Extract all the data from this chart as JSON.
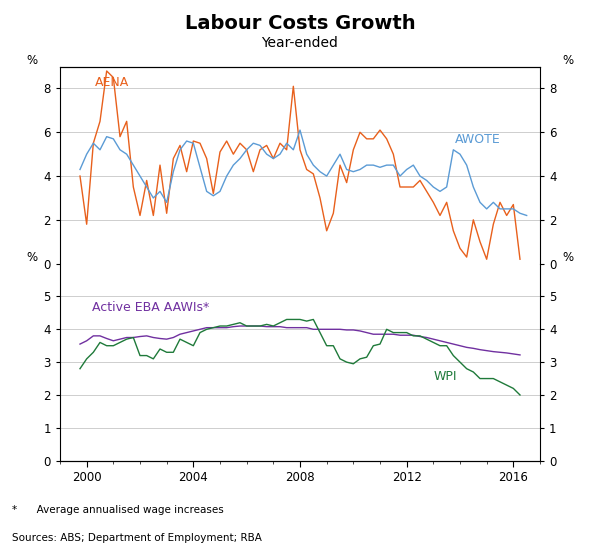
{
  "title": "Labour Costs Growth",
  "subtitle": "Year-ended",
  "footnote": "*      Average annualised wage increases",
  "source": "Sources: ABS; Department of Employment; RBA",
  "title_fontsize": 14,
  "subtitle_fontsize": 10,
  "label_fontsize": 9,
  "tick_fontsize": 8.5,
  "top_panel": {
    "ylim": [
      0,
      9
    ],
    "yticks": [
      0,
      2,
      4,
      6,
      8
    ],
    "ylabel": "%",
    "aena_color": "#E8601C",
    "awote_color": "#5B9BD5",
    "aena_label": "AENA",
    "awote_label": "AWOTE",
    "aena_data": {
      "x": [
        1999.75,
        2000.0,
        2000.25,
        2000.5,
        2000.75,
        2001.0,
        2001.25,
        2001.5,
        2001.75,
        2002.0,
        2002.25,
        2002.5,
        2002.75,
        2003.0,
        2003.25,
        2003.5,
        2003.75,
        2004.0,
        2004.25,
        2004.5,
        2004.75,
        2005.0,
        2005.25,
        2005.5,
        2005.75,
        2006.0,
        2006.25,
        2006.5,
        2006.75,
        2007.0,
        2007.25,
        2007.5,
        2007.75,
        2008.0,
        2008.25,
        2008.5,
        2008.75,
        2009.0,
        2009.25,
        2009.5,
        2009.75,
        2010.0,
        2010.25,
        2010.5,
        2010.75,
        2011.0,
        2011.25,
        2011.5,
        2011.75,
        2012.0,
        2012.25,
        2012.5,
        2012.75,
        2013.0,
        2013.25,
        2013.5,
        2013.75,
        2014.0,
        2014.25,
        2014.5,
        2014.75,
        2015.0,
        2015.25,
        2015.5,
        2015.75,
        2016.0,
        2016.25,
        2016.5
      ],
      "y": [
        4.0,
        1.8,
        5.5,
        6.5,
        8.8,
        8.5,
        5.8,
        6.5,
        3.5,
        2.2,
        3.8,
        2.2,
        4.5,
        2.3,
        4.8,
        5.4,
        4.2,
        5.6,
        5.5,
        4.8,
        3.2,
        5.1,
        5.6,
        5.0,
        5.5,
        5.2,
        4.2,
        5.2,
        5.4,
        4.8,
        5.5,
        5.2,
        8.1,
        5.2,
        4.3,
        4.1,
        3.0,
        1.5,
        2.3,
        4.5,
        3.7,
        5.2,
        6.0,
        5.7,
        5.7,
        6.1,
        5.7,
        5.0,
        3.5,
        3.5,
        3.5,
        3.8,
        3.3,
        2.8,
        2.2,
        2.8,
        1.5,
        0.7,
        0.3,
        2.0,
        1.0,
        0.2,
        1.8,
        2.8,
        2.2,
        2.7,
        0.2,
        null
      ]
    },
    "awote_data": {
      "x": [
        1999.75,
        2000.0,
        2000.25,
        2000.5,
        2000.75,
        2001.0,
        2001.25,
        2001.5,
        2001.75,
        2002.0,
        2002.25,
        2002.5,
        2002.75,
        2003.0,
        2003.25,
        2003.5,
        2003.75,
        2004.0,
        2004.25,
        2004.5,
        2004.75,
        2005.0,
        2005.25,
        2005.5,
        2005.75,
        2006.0,
        2006.25,
        2006.5,
        2006.75,
        2007.0,
        2007.25,
        2007.5,
        2007.75,
        2008.0,
        2008.25,
        2008.5,
        2008.75,
        2009.0,
        2009.25,
        2009.5,
        2009.75,
        2010.0,
        2010.25,
        2010.5,
        2010.75,
        2011.0,
        2011.25,
        2011.5,
        2011.75,
        2012.0,
        2012.25,
        2012.5,
        2012.75,
        2013.0,
        2013.25,
        2013.5,
        2013.75,
        2014.0,
        2014.25,
        2014.5,
        2014.75,
        2015.0,
        2015.25,
        2015.5,
        2015.75,
        2016.0,
        2016.25,
        2016.5
      ],
      "y": [
        4.3,
        5.0,
        5.5,
        5.2,
        5.8,
        5.7,
        5.2,
        5.0,
        4.5,
        4.0,
        3.5,
        3.0,
        3.3,
        2.8,
        4.2,
        5.2,
        5.6,
        5.5,
        4.4,
        3.3,
        3.1,
        3.3,
        4.0,
        4.5,
        4.8,
        5.2,
        5.5,
        5.4,
        5.0,
        4.8,
        5.0,
        5.5,
        5.2,
        6.1,
        5.0,
        4.5,
        4.2,
        4.0,
        4.5,
        5.0,
        4.3,
        4.2,
        4.3,
        4.5,
        4.5,
        4.4,
        4.5,
        4.5,
        4.0,
        4.3,
        4.5,
        4.0,
        3.8,
        3.5,
        3.3,
        3.5,
        5.2,
        5.0,
        4.5,
        3.5,
        2.8,
        2.5,
        2.8,
        2.5,
        2.5,
        2.5,
        2.3,
        2.2
      ]
    }
  },
  "bottom_panel": {
    "ylim": [
      0,
      6
    ],
    "yticks": [
      0,
      1,
      2,
      3,
      4,
      5
    ],
    "ylabel": "%",
    "eba_color": "#7030A0",
    "wpi_color": "#1F7A3A",
    "eba_label": "Active EBA AAWIs*",
    "wpi_label": "WPI",
    "eba_data": {
      "x": [
        1999.75,
        2000.0,
        2000.25,
        2000.5,
        2000.75,
        2001.0,
        2001.25,
        2001.5,
        2001.75,
        2002.0,
        2002.25,
        2002.5,
        2002.75,
        2003.0,
        2003.25,
        2003.5,
        2003.75,
        2004.0,
        2004.25,
        2004.5,
        2004.75,
        2005.0,
        2005.25,
        2005.5,
        2005.75,
        2006.0,
        2006.25,
        2006.5,
        2006.75,
        2007.0,
        2007.25,
        2007.5,
        2007.75,
        2008.0,
        2008.25,
        2008.5,
        2008.75,
        2009.0,
        2009.25,
        2009.5,
        2009.75,
        2010.0,
        2010.25,
        2010.5,
        2010.75,
        2011.0,
        2011.25,
        2011.5,
        2011.75,
        2012.0,
        2012.25,
        2012.5,
        2012.75,
        2013.0,
        2013.25,
        2013.5,
        2013.75,
        2014.0,
        2014.25,
        2014.5,
        2014.75,
        2015.0,
        2015.25,
        2015.5,
        2015.75,
        2016.0,
        2016.25,
        2016.5
      ],
      "y": [
        3.55,
        3.65,
        3.8,
        3.8,
        3.72,
        3.65,
        3.7,
        3.75,
        3.75,
        3.78,
        3.8,
        3.75,
        3.72,
        3.7,
        3.75,
        3.85,
        3.9,
        3.95,
        4.0,
        4.05,
        4.05,
        4.05,
        4.05,
        4.08,
        4.1,
        4.1,
        4.1,
        4.1,
        4.08,
        4.08,
        4.08,
        4.05,
        4.05,
        4.05,
        4.05,
        4.0,
        4.0,
        4.0,
        4.0,
        4.0,
        3.98,
        3.98,
        3.95,
        3.9,
        3.85,
        3.85,
        3.85,
        3.85,
        3.82,
        3.82,
        3.82,
        3.78,
        3.75,
        3.7,
        3.65,
        3.6,
        3.55,
        3.5,
        3.45,
        3.42,
        3.38,
        3.35,
        3.32,
        3.3,
        3.28,
        3.25,
        3.22,
        null
      ]
    },
    "wpi_data": {
      "x": [
        1999.75,
        2000.0,
        2000.25,
        2000.5,
        2000.75,
        2001.0,
        2001.25,
        2001.5,
        2001.75,
        2002.0,
        2002.25,
        2002.5,
        2002.75,
        2003.0,
        2003.25,
        2003.5,
        2003.75,
        2004.0,
        2004.25,
        2004.5,
        2004.75,
        2005.0,
        2005.25,
        2005.5,
        2005.75,
        2006.0,
        2006.25,
        2006.5,
        2006.75,
        2007.0,
        2007.25,
        2007.5,
        2007.75,
        2008.0,
        2008.25,
        2008.5,
        2008.75,
        2009.0,
        2009.25,
        2009.5,
        2009.75,
        2010.0,
        2010.25,
        2010.5,
        2010.75,
        2011.0,
        2011.25,
        2011.5,
        2011.75,
        2012.0,
        2012.25,
        2012.5,
        2012.75,
        2013.0,
        2013.25,
        2013.5,
        2013.75,
        2014.0,
        2014.25,
        2014.5,
        2014.75,
        2015.0,
        2015.25,
        2015.5,
        2015.75,
        2016.0,
        2016.25,
        2016.5
      ],
      "y": [
        2.8,
        3.1,
        3.3,
        3.6,
        3.5,
        3.5,
        3.6,
        3.7,
        3.75,
        3.2,
        3.2,
        3.1,
        3.4,
        3.3,
        3.3,
        3.7,
        3.6,
        3.5,
        3.9,
        4.0,
        4.05,
        4.1,
        4.1,
        4.15,
        4.2,
        4.1,
        4.1,
        4.1,
        4.15,
        4.1,
        4.2,
        4.3,
        4.3,
        4.3,
        4.25,
        4.3,
        3.9,
        3.5,
        3.5,
        3.1,
        3.0,
        2.95,
        3.1,
        3.15,
        3.5,
        3.55,
        4.0,
        3.9,
        3.9,
        3.9,
        3.8,
        3.8,
        3.7,
        3.6,
        3.5,
        3.5,
        3.2,
        3.0,
        2.8,
        2.7,
        2.5,
        2.5,
        2.5,
        2.4,
        2.3,
        2.2,
        2.0,
        null
      ]
    }
  },
  "xlim": [
    1999.5,
    2017.0
  ],
  "xticks": [
    2000,
    2004,
    2008,
    2012,
    2016
  ],
  "background_color": "#ffffff",
  "grid_color": "#bbbbbb",
  "spine_color": "#000000",
  "line_width": 1.0
}
